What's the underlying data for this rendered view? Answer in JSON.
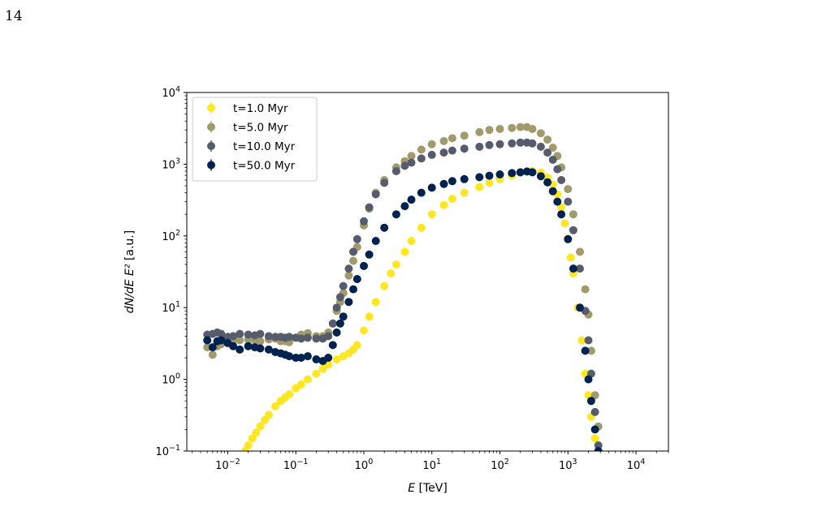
{
  "page": {
    "number": "14",
    "caption_fragment": ""
  },
  "chart_data": {
    "type": "scatter",
    "title": "",
    "xlabel": "E [TeV]",
    "ylabel": "dN/dE E² [a.u.]",
    "xscale": "log",
    "yscale": "log",
    "xlim": [
      0.0025,
      30000
    ],
    "ylim": [
      0.1,
      10000
    ],
    "grid": false,
    "legend_position": "top-left",
    "xticks": [
      {
        "value": 0.01,
        "base": "10",
        "exp": "−2"
      },
      {
        "value": 0.1,
        "base": "10",
        "exp": "−1"
      },
      {
        "value": 1,
        "base": "10",
        "exp": "0"
      },
      {
        "value": 10,
        "base": "10",
        "exp": "1"
      },
      {
        "value": 100,
        "base": "10",
        "exp": "2"
      },
      {
        "value": 1000,
        "base": "10",
        "exp": "3"
      },
      {
        "value": 10000,
        "base": "10",
        "exp": "4"
      }
    ],
    "yticks": [
      {
        "value": 0.1,
        "base": "10",
        "exp": "−1"
      },
      {
        "value": 1,
        "base": "10",
        "exp": "0"
      },
      {
        "value": 10,
        "base": "10",
        "exp": "1"
      },
      {
        "value": 100,
        "base": "10",
        "exp": "2"
      },
      {
        "value": 1000,
        "base": "10",
        "exp": "3"
      },
      {
        "value": 10000,
        "base": "10",
        "exp": "4"
      }
    ],
    "series": [
      {
        "name": "t=1.0 Myr",
        "color": "#fde725",
        "x": [
          0.018,
          0.02,
          0.023,
          0.026,
          0.03,
          0.035,
          0.04,
          0.05,
          0.06,
          0.07,
          0.08,
          0.1,
          0.12,
          0.15,
          0.2,
          0.25,
          0.3,
          0.4,
          0.5,
          0.6,
          0.7,
          0.8,
          1.0,
          1.2,
          1.5,
          2,
          2.5,
          3,
          4,
          5,
          7,
          10,
          15,
          20,
          30,
          50,
          70,
          100,
          150,
          200,
          300,
          400,
          500,
          600,
          700,
          800,
          900,
          1000,
          1100,
          1200,
          1400,
          1600,
          1800,
          2000,
          2200,
          2500,
          2800
        ],
        "y": [
          0.1,
          0.12,
          0.15,
          0.18,
          0.22,
          0.27,
          0.32,
          0.42,
          0.5,
          0.56,
          0.62,
          0.75,
          0.85,
          1.0,
          1.2,
          1.4,
          1.6,
          1.9,
          2.1,
          2.3,
          2.6,
          3.0,
          4.8,
          7.5,
          12,
          20,
          30,
          40,
          60,
          85,
          130,
          200,
          270,
          330,
          400,
          480,
          550,
          620,
          700,
          760,
          800,
          760,
          650,
          520,
          380,
          250,
          150,
          90,
          50,
          30,
          10,
          3.5,
          1.2,
          0.6,
          0.3,
          0.15,
          0.1
        ]
      },
      {
        "name": "t=5.0 Myr",
        "color": "#a19a6c",
        "x": [
          0.005,
          0.006,
          0.007,
          0.008,
          0.01,
          0.012,
          0.015,
          0.02,
          0.025,
          0.03,
          0.04,
          0.05,
          0.06,
          0.07,
          0.08,
          0.1,
          0.12,
          0.15,
          0.2,
          0.25,
          0.3,
          0.35,
          0.4,
          0.45,
          0.5,
          0.6,
          0.7,
          0.8,
          1.0,
          1.2,
          1.5,
          2,
          3,
          4,
          5,
          7,
          10,
          15,
          20,
          30,
          50,
          70,
          100,
          150,
          200,
          250,
          300,
          400,
          500,
          600,
          700,
          800,
          1000,
          1200,
          1500,
          1800,
          2000,
          2200,
          2500,
          2800
        ],
        "y": [
          2.8,
          2.2,
          2.9,
          3.1,
          3.4,
          3.5,
          3.5,
          3.6,
          3.5,
          3.4,
          3.6,
          3.7,
          3.4,
          3.4,
          3.3,
          3.8,
          4.2,
          4.4,
          4.0,
          4.0,
          4.5,
          6,
          9,
          12,
          16,
          28,
          45,
          70,
          140,
          240,
          400,
          600,
          900,
          1100,
          1300,
          1600,
          1900,
          2100,
          2300,
          2500,
          2800,
          3000,
          3100,
          3200,
          3300,
          3300,
          3100,
          2700,
          2200,
          1700,
          1300,
          900,
          450,
          200,
          60,
          18,
          8,
          2.5,
          0.6,
          0.22
        ]
      },
      {
        "name": "t=10.0 Myr",
        "color": "#575c6d",
        "x": [
          0.005,
          0.006,
          0.007,
          0.008,
          0.01,
          0.012,
          0.015,
          0.02,
          0.025,
          0.03,
          0.04,
          0.05,
          0.06,
          0.07,
          0.08,
          0.1,
          0.12,
          0.15,
          0.2,
          0.25,
          0.3,
          0.35,
          0.4,
          0.45,
          0.5,
          0.6,
          0.7,
          0.8,
          1.0,
          1.2,
          1.5,
          2,
          3,
          4,
          5,
          7,
          10,
          15,
          20,
          30,
          50,
          70,
          100,
          150,
          200,
          250,
          300,
          400,
          500,
          600,
          700,
          800,
          1000,
          1200,
          1500,
          1800,
          2000,
          2200,
          2500,
          2800
        ],
        "y": [
          4.2,
          4.3,
          4.5,
          4.3,
          3.9,
          4.0,
          4.3,
          4.2,
          4.1,
          4.3,
          4.0,
          3.9,
          3.9,
          3.8,
          3.9,
          3.8,
          3.7,
          3.8,
          3.7,
          3.7,
          4.0,
          6,
          10,
          14,
          20,
          35,
          60,
          90,
          160,
          250,
          380,
          550,
          800,
          950,
          1050,
          1200,
          1350,
          1450,
          1550,
          1650,
          1750,
          1850,
          1900,
          1950,
          2000,
          2000,
          1950,
          1750,
          1450,
          1150,
          850,
          600,
          300,
          120,
          35,
          9,
          3.5,
          1.2,
          0.35,
          0.12
        ]
      },
      {
        "name": "t=50.0 Myr",
        "color": "#00224e",
        "x": [
          0.005,
          0.006,
          0.007,
          0.008,
          0.01,
          0.012,
          0.015,
          0.02,
          0.025,
          0.03,
          0.04,
          0.05,
          0.06,
          0.07,
          0.08,
          0.1,
          0.12,
          0.15,
          0.2,
          0.25,
          0.3,
          0.35,
          0.4,
          0.45,
          0.5,
          0.6,
          0.7,
          0.8,
          1.0,
          1.2,
          1.5,
          2,
          3,
          4,
          5,
          7,
          10,
          15,
          20,
          30,
          50,
          70,
          100,
          150,
          200,
          250,
          300,
          400,
          500,
          600,
          700,
          800,
          1000,
          1200,
          1500,
          1800,
          2000,
          2200,
          2500,
          2800
        ],
        "y": [
          3.5,
          2.8,
          3.4,
          3.5,
          3.2,
          2.9,
          2.6,
          2.9,
          2.8,
          2.7,
          2.6,
          2.4,
          2.3,
          2.2,
          2.1,
          2.0,
          2.0,
          2.1,
          1.9,
          1.8,
          2.0,
          3.0,
          4.5,
          6.0,
          7.5,
          12,
          18,
          25,
          38,
          55,
          85,
          130,
          200,
          260,
          320,
          400,
          470,
          530,
          580,
          620,
          660,
          690,
          720,
          750,
          770,
          790,
          770,
          680,
          560,
          420,
          300,
          200,
          90,
          35,
          10,
          2.5,
          1.0,
          0.5,
          0.2,
          0.1
        ]
      }
    ]
  }
}
